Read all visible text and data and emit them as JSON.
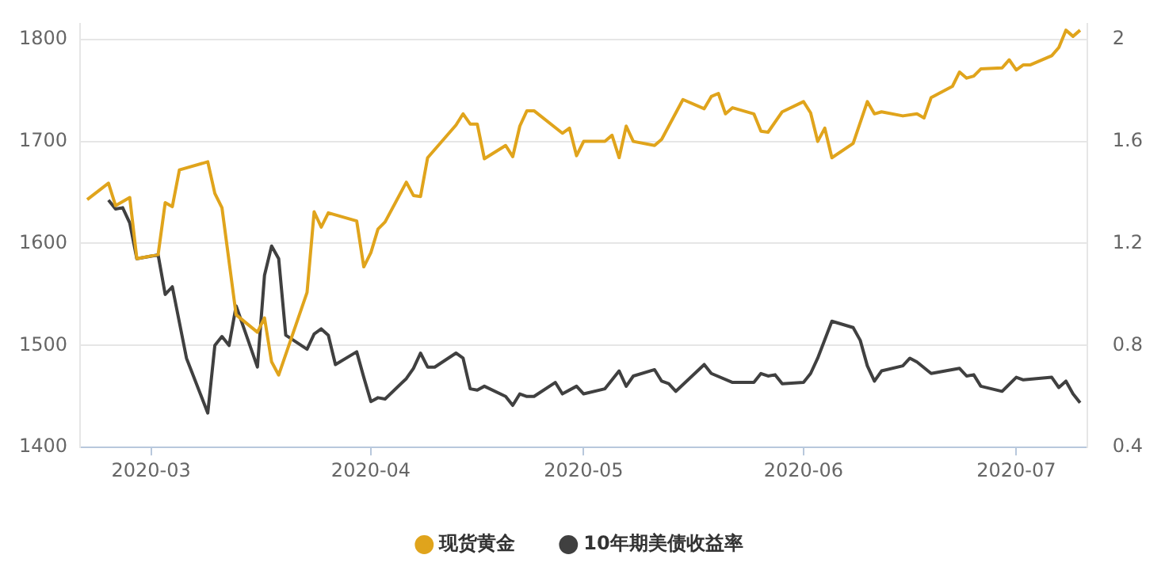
{
  "chart_data": {
    "type": "line",
    "xlim": [
      "2020-02-20",
      "2020-07-11"
    ],
    "xticks": [
      "2020-03",
      "2020-04",
      "2020-05",
      "2020-06",
      "2020-07"
    ],
    "ylim": [
      1400,
      1815
    ],
    "yticks": [
      1400,
      1500,
      1600,
      1700,
      1800
    ],
    "y2lim": [
      0.4,
      2.06
    ],
    "y2ticks": [
      0.4,
      0.8,
      1.2,
      1.6,
      2
    ],
    "grid": "y",
    "legend": "bottom",
    "marker": "none",
    "line_style": "solid",
    "series": [
      {
        "name": "现货黄金",
        "color": "#e0a41c",
        "x": [
          "2020-02-21",
          "2020-02-24",
          "2020-02-25",
          "2020-02-27",
          "2020-02-28",
          "2020-03-02",
          "2020-03-03",
          "2020-03-04",
          "2020-03-05",
          "2020-03-09",
          "2020-03-10",
          "2020-03-11",
          "2020-03-13",
          "2020-03-16",
          "2020-03-17",
          "2020-03-18",
          "2020-03-19",
          "2020-03-23",
          "2020-03-24",
          "2020-03-25",
          "2020-03-26",
          "2020-03-30",
          "2020-03-31",
          "2020-04-01",
          "2020-04-02",
          "2020-04-03",
          "2020-04-06",
          "2020-04-07",
          "2020-04-08",
          "2020-04-09",
          "2020-04-13",
          "2020-04-14",
          "2020-04-15",
          "2020-04-16",
          "2020-04-17",
          "2020-04-20",
          "2020-04-21",
          "2020-04-22",
          "2020-04-23",
          "2020-04-24",
          "2020-04-28",
          "2020-04-29",
          "2020-04-30",
          "2020-05-01",
          "2020-05-04",
          "2020-05-05",
          "2020-05-06",
          "2020-05-07",
          "2020-05-08",
          "2020-05-11",
          "2020-05-12",
          "2020-05-15",
          "2020-05-18",
          "2020-05-19",
          "2020-05-20",
          "2020-05-21",
          "2020-05-22",
          "2020-05-25",
          "2020-05-26",
          "2020-05-27",
          "2020-05-29",
          "2020-06-01",
          "2020-06-02",
          "2020-06-03",
          "2020-06-04",
          "2020-06-05",
          "2020-06-08",
          "2020-06-10",
          "2020-06-11",
          "2020-06-12",
          "2020-06-15",
          "2020-06-17",
          "2020-06-18",
          "2020-06-19",
          "2020-06-22",
          "2020-06-23",
          "2020-06-24",
          "2020-06-25",
          "2020-06-26",
          "2020-06-29",
          "2020-06-30",
          "2020-07-01",
          "2020-07-02",
          "2020-07-03",
          "2020-07-06",
          "2020-07-07",
          "2020-07-08",
          "2020-07-09",
          "2020-07-10"
        ],
        "values": [
          1643,
          1659,
          1637,
          1645,
          1585,
          1589,
          1640,
          1636,
          1672,
          1680,
          1649,
          1635,
          1530,
          1513,
          1527,
          1484,
          1471,
          1552,
          1631,
          1616,
          1630,
          1622,
          1577,
          1591,
          1614,
          1621,
          1660,
          1647,
          1646,
          1684,
          1716,
          1727,
          1717,
          1717,
          1683,
          1696,
          1685,
          1715,
          1730,
          1730,
          1708,
          1713,
          1686,
          1700,
          1700,
          1706,
          1684,
          1715,
          1700,
          1696,
          1702,
          1741,
          1732,
          1744,
          1747,
          1727,
          1733,
          1727,
          1710,
          1709,
          1729,
          1739,
          1728,
          1700,
          1713,
          1684,
          1698,
          1739,
          1727,
          1729,
          1725,
          1727,
          1723,
          1743,
          1754,
          1768,
          1762,
          1764,
          1771,
          1772,
          1780,
          1770,
          1775,
          1775,
          1784,
          1792,
          1809,
          1803,
          1809
        ]
      },
      {
        "name": "10年期美债收益率",
        "color": "#404040",
        "axis": "y2",
        "x": [
          "2020-02-24",
          "2020-02-25",
          "2020-02-26",
          "2020-02-27",
          "2020-02-28",
          "2020-03-02",
          "2020-03-03",
          "2020-03-04",
          "2020-03-06",
          "2020-03-09",
          "2020-03-10",
          "2020-03-11",
          "2020-03-12",
          "2020-03-13",
          "2020-03-16",
          "2020-03-17",
          "2020-03-18",
          "2020-03-19",
          "2020-03-20",
          "2020-03-23",
          "2020-03-24",
          "2020-03-25",
          "2020-03-26",
          "2020-03-27",
          "2020-03-30",
          "2020-03-31",
          "2020-04-01",
          "2020-04-02",
          "2020-04-03",
          "2020-04-06",
          "2020-04-07",
          "2020-04-08",
          "2020-04-09",
          "2020-04-10",
          "2020-04-13",
          "2020-04-14",
          "2020-04-15",
          "2020-04-16",
          "2020-04-17",
          "2020-04-20",
          "2020-04-21",
          "2020-04-22",
          "2020-04-23",
          "2020-04-24",
          "2020-04-27",
          "2020-04-28",
          "2020-04-30",
          "2020-05-01",
          "2020-05-04",
          "2020-05-06",
          "2020-05-07",
          "2020-05-08",
          "2020-05-11",
          "2020-05-12",
          "2020-05-13",
          "2020-05-14",
          "2020-05-18",
          "2020-05-19",
          "2020-05-22",
          "2020-05-25",
          "2020-05-26",
          "2020-05-27",
          "2020-05-28",
          "2020-05-29",
          "2020-06-01",
          "2020-06-02",
          "2020-06-03",
          "2020-06-05",
          "2020-06-08",
          "2020-06-09",
          "2020-06-10",
          "2020-06-11",
          "2020-06-12",
          "2020-06-15",
          "2020-06-16",
          "2020-06-17",
          "2020-06-19",
          "2020-06-23",
          "2020-06-24",
          "2020-06-25",
          "2020-06-26",
          "2020-06-29",
          "2020-07-01",
          "2020-07-02",
          "2020-07-06",
          "2020-07-07",
          "2020-07-08",
          "2020-07-09",
          "2020-07-10"
        ],
        "values": [
          1.37,
          1.335,
          1.34,
          1.28,
          1.14,
          1.155,
          1.0,
          1.03,
          0.75,
          0.535,
          0.8,
          0.835,
          0.8,
          0.955,
          0.715,
          1.075,
          1.19,
          1.14,
          0.84,
          0.785,
          0.845,
          0.865,
          0.84,
          0.725,
          0.775,
          0.675,
          0.58,
          0.595,
          0.59,
          0.67,
          0.71,
          0.77,
          0.715,
          0.715,
          0.77,
          0.75,
          0.63,
          0.625,
          0.64,
          0.6,
          0.565,
          0.61,
          0.6,
          0.6,
          0.655,
          0.61,
          0.64,
          0.61,
          0.63,
          0.7,
          0.64,
          0.68,
          0.705,
          0.66,
          0.65,
          0.62,
          0.725,
          0.69,
          0.655,
          0.655,
          0.69,
          0.68,
          0.685,
          0.65,
          0.655,
          0.69,
          0.75,
          0.895,
          0.87,
          0.82,
          0.72,
          0.66,
          0.7,
          0.72,
          0.75,
          0.735,
          0.69,
          0.71,
          0.68,
          0.685,
          0.64,
          0.62,
          0.675,
          0.665,
          0.675,
          0.635,
          0.66,
          0.61,
          0.575
        ]
      }
    ]
  }
}
